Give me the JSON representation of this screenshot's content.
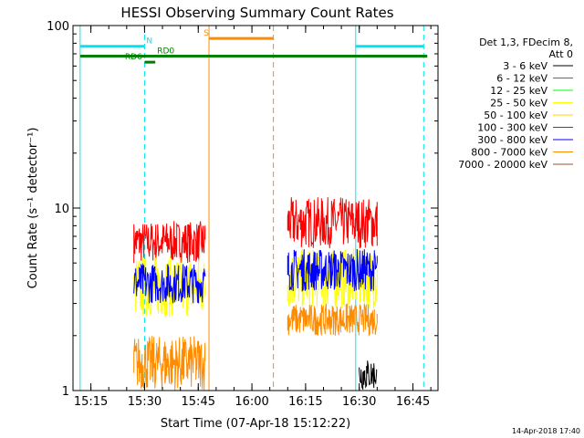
{
  "chart_data": {
    "type": "line",
    "title": "HESSI Observing Summary Count Rates",
    "xlabel": "Start Time (07-Apr-18 15:12:22)",
    "ylabel": "Count Rate (s⁻¹ detector⁻¹)",
    "yscale": "log",
    "ylim": [
      1,
      100
    ],
    "xlim": [
      "15:10",
      "16:52"
    ],
    "x_ticks": [
      "15:15",
      "15:30",
      "15:45",
      "16:00",
      "16:15",
      "16:30",
      "16:45"
    ],
    "y_ticks": [
      "1",
      "10",
      "100"
    ],
    "timestamp": "14-Apr-2018 17:40",
    "legend": {
      "placement": "right",
      "header": [
        "Det 1,3, FDecim 8,",
        "Att 0"
      ],
      "entries": [
        {
          "label": "3 - 6 keV",
          "color": "#000000"
        },
        {
          "label": "6 - 12 keV",
          "color": "#ff00ff"
        },
        {
          "label": "12 - 25 keV",
          "color": "#00ff00"
        },
        {
          "label": "25 - 50 keV",
          "color": "#ffff00"
        },
        {
          "label": "50 - 100 keV",
          "color": "#ffd700"
        },
        {
          "label": "100 - 300 keV",
          "color": "#ff0000"
        },
        {
          "label": "300 - 800 keV",
          "color": "#0000ff"
        },
        {
          "label": "800 - 7000 keV",
          "color": "#ff8c00"
        },
        {
          "label": "7000 - 20000 keV",
          "color": "#a0522d"
        }
      ]
    },
    "series": [
      {
        "name": "100 - 300 keV",
        "color": "#ff0000",
        "segments": [
          {
            "start": "15:27",
            "end": "15:47",
            "low": 5.0,
            "high": 8.5
          },
          {
            "start": "16:10",
            "end": "16:35",
            "low": 6.0,
            "high": 11.5
          }
        ]
      },
      {
        "name": "25 - 50 keV",
        "color": "#ffff00",
        "segments": [
          {
            "start": "15:27",
            "end": "15:47",
            "low": 2.5,
            "high": 5.5
          },
          {
            "start": "16:10",
            "end": "16:35",
            "low": 2.8,
            "high": 6.0
          }
        ]
      },
      {
        "name": "300 - 800 keV",
        "color": "#0000ff",
        "segments": [
          {
            "start": "15:27",
            "end": "15:47",
            "low": 3.0,
            "high": 5.0
          },
          {
            "start": "16:10",
            "end": "16:35",
            "low": 3.5,
            "high": 6.0
          }
        ]
      },
      {
        "name": "800 - 7000 keV",
        "color": "#ff8c00",
        "segments": [
          {
            "start": "15:27",
            "end": "15:47",
            "low": 1.0,
            "high": 2.0
          },
          {
            "start": "16:10",
            "end": "16:35",
            "low": 2.0,
            "high": 3.0
          }
        ]
      },
      {
        "name": "3 - 6 keV",
        "color": "#000000",
        "segments": [
          {
            "start": "16:30",
            "end": "16:35",
            "low": 1.0,
            "high": 1.5
          }
        ]
      }
    ],
    "flags": [
      {
        "label": "N",
        "color": "#00e5ee",
        "start": "15:12",
        "end": "15:30",
        "value": 77,
        "label_at": "15:30"
      },
      {
        "label": "",
        "color": "#00e5ee",
        "start": "16:29",
        "end": "16:48",
        "value": 77
      },
      {
        "label": "S",
        "color": "#ff8c00",
        "start": "15:48",
        "end": "16:06",
        "value": 85,
        "label_at": "15:46"
      },
      {
        "label": "RD0",
        "color": "#008000",
        "start": "15:12",
        "end": "16:49",
        "value": 68,
        "label_at": "15:33"
      },
      {
        "label": "RD6",
        "color": "#008000",
        "start": "15:30",
        "end": "15:33",
        "value": 63,
        "label_at": "15:24"
      }
    ],
    "vertical_lines": [
      {
        "t": "15:12",
        "color": "#00e5ee",
        "style": "solid"
      },
      {
        "t": "15:30",
        "color": "#00e5ee",
        "style": "dashed"
      },
      {
        "t": "15:48",
        "color": "#ff8c00",
        "style": "solid"
      },
      {
        "t": "16:06",
        "color": "#ff8c00",
        "style": "dashed"
      },
      {
        "t": "16:29",
        "color": "#00e5ee",
        "style": "solid"
      },
      {
        "t": "16:48",
        "color": "#00e5ee",
        "style": "dashed"
      }
    ]
  }
}
